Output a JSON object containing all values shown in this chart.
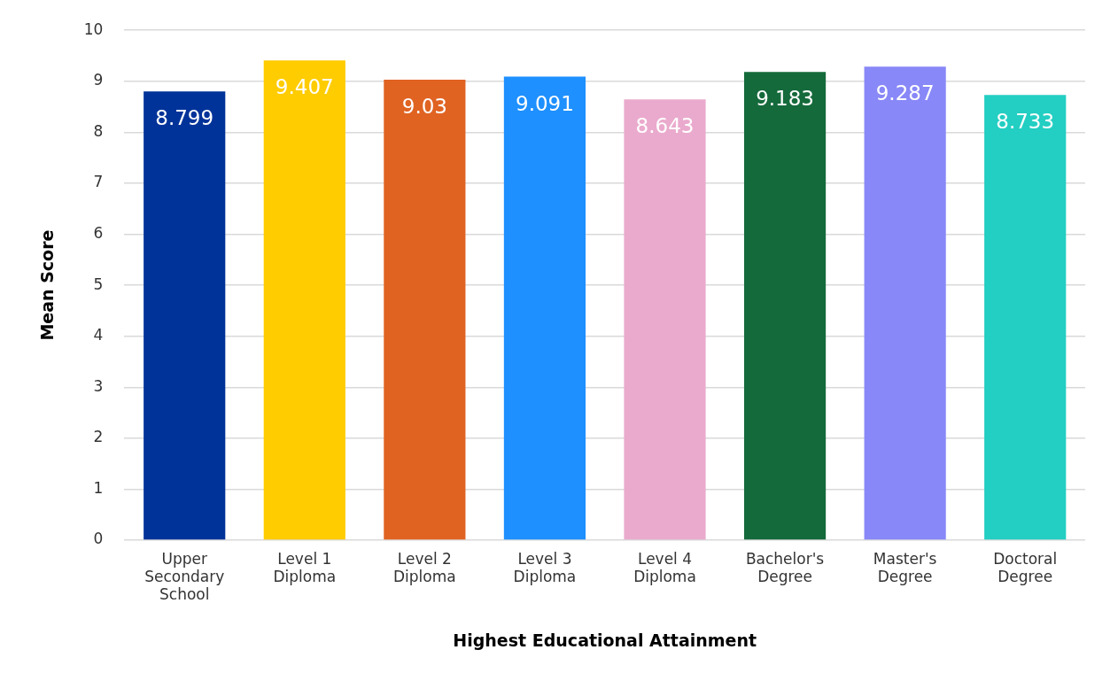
{
  "chart_data": {
    "type": "bar",
    "xlabel": "Highest Educational Attainment",
    "ylabel": "Mean Score",
    "categories": [
      "Upper Secondary School",
      "Level 1 Diploma",
      "Level 2 Diploma",
      "Level 3 Diploma",
      "Level 4 Diploma",
      "Bachelor's Degree",
      "Master's Degree",
      "Doctoral Degree"
    ],
    "values": [
      8.799,
      9.407,
      9.03,
      9.091,
      8.643,
      9.183,
      9.287,
      8.733
    ],
    "colors": [
      "#003399",
      "#ffcc00",
      "#e06322",
      "#1e90ff",
      "#eaaacd",
      "#156a3b",
      "#8888f8",
      "#23cec2"
    ],
    "ylim": [
      0,
      10
    ],
    "yticks": [
      0,
      1,
      2,
      3,
      4,
      5,
      6,
      7,
      8,
      9,
      10
    ],
    "grid": "y",
    "legend": false,
    "data_labels": true
  }
}
